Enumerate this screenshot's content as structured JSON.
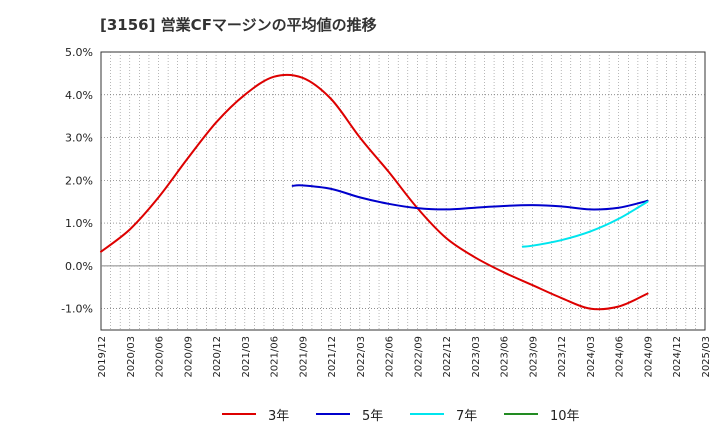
{
  "title": "[3156]  営業CFマージンの平均値の推移",
  "chart_data": {
    "type": "line",
    "title": "[3156]  営業CFマージンの平均値の推移",
    "xlabel": "",
    "ylabel": "",
    "x_ticks": [
      "2019/12",
      "2020/03",
      "2020/06",
      "2020/09",
      "2020/12",
      "2021/03",
      "2021/06",
      "2021/09",
      "2021/12",
      "2022/03",
      "2022/06",
      "2022/09",
      "2022/12",
      "2023/03",
      "2023/06",
      "2023/09",
      "2023/12",
      "2024/03",
      "2024/06",
      "2024/09",
      "2024/12",
      "2025/03"
    ],
    "y_ticks": [
      "5.0%",
      "4.0%",
      "3.0%",
      "2.0%",
      "1.0%",
      "0.0%",
      "-1.0%"
    ],
    "ylim": [
      -1.5,
      5.0
    ],
    "grid": true,
    "legend_position": "bottom",
    "series": [
      {
        "name": "3年",
        "color": "#dd0000",
        "points": [
          [
            "2019/12",
            0.33
          ],
          [
            "2020/03",
            0.85
          ],
          [
            "2020/06",
            1.6
          ],
          [
            "2020/09",
            2.5
          ],
          [
            "2020/12",
            3.35
          ],
          [
            "2021/03",
            4.0
          ],
          [
            "2021/06",
            4.42
          ],
          [
            "2021/09",
            4.4
          ],
          [
            "2021/12",
            3.9
          ],
          [
            "2022/03",
            3.0
          ],
          [
            "2022/06",
            2.2
          ],
          [
            "2022/09",
            1.35
          ],
          [
            "2022/12",
            0.65
          ],
          [
            "2023/03",
            0.2
          ],
          [
            "2023/06",
            -0.15
          ],
          [
            "2023/09",
            -0.45
          ],
          [
            "2023/12",
            -0.75
          ],
          [
            "2024/03",
            -1.0
          ],
          [
            "2024/06",
            -0.95
          ],
          [
            "2024/09",
            -0.65
          ]
        ]
      },
      {
        "name": "5年",
        "color": "#0000cc",
        "points": [
          [
            "2021/08",
            1.87
          ],
          [
            "2021/09",
            1.88
          ],
          [
            "2021/12",
            1.8
          ],
          [
            "2022/03",
            1.6
          ],
          [
            "2022/06",
            1.45
          ],
          [
            "2022/09",
            1.35
          ],
          [
            "2022/12",
            1.32
          ],
          [
            "2023/03",
            1.36
          ],
          [
            "2023/06",
            1.4
          ],
          [
            "2023/09",
            1.42
          ],
          [
            "2023/12",
            1.39
          ],
          [
            "2024/03",
            1.32
          ],
          [
            "2024/06",
            1.36
          ],
          [
            "2024/09",
            1.52
          ]
        ]
      },
      {
        "name": "7年",
        "color": "#00e5ee",
        "points": [
          [
            "2023/08",
            0.45
          ],
          [
            "2023/09",
            0.47
          ],
          [
            "2023/12",
            0.6
          ],
          [
            "2024/03",
            0.8
          ],
          [
            "2024/06",
            1.1
          ],
          [
            "2024/09",
            1.5
          ]
        ]
      },
      {
        "name": "10年",
        "color": "#228b22",
        "points": []
      }
    ]
  }
}
